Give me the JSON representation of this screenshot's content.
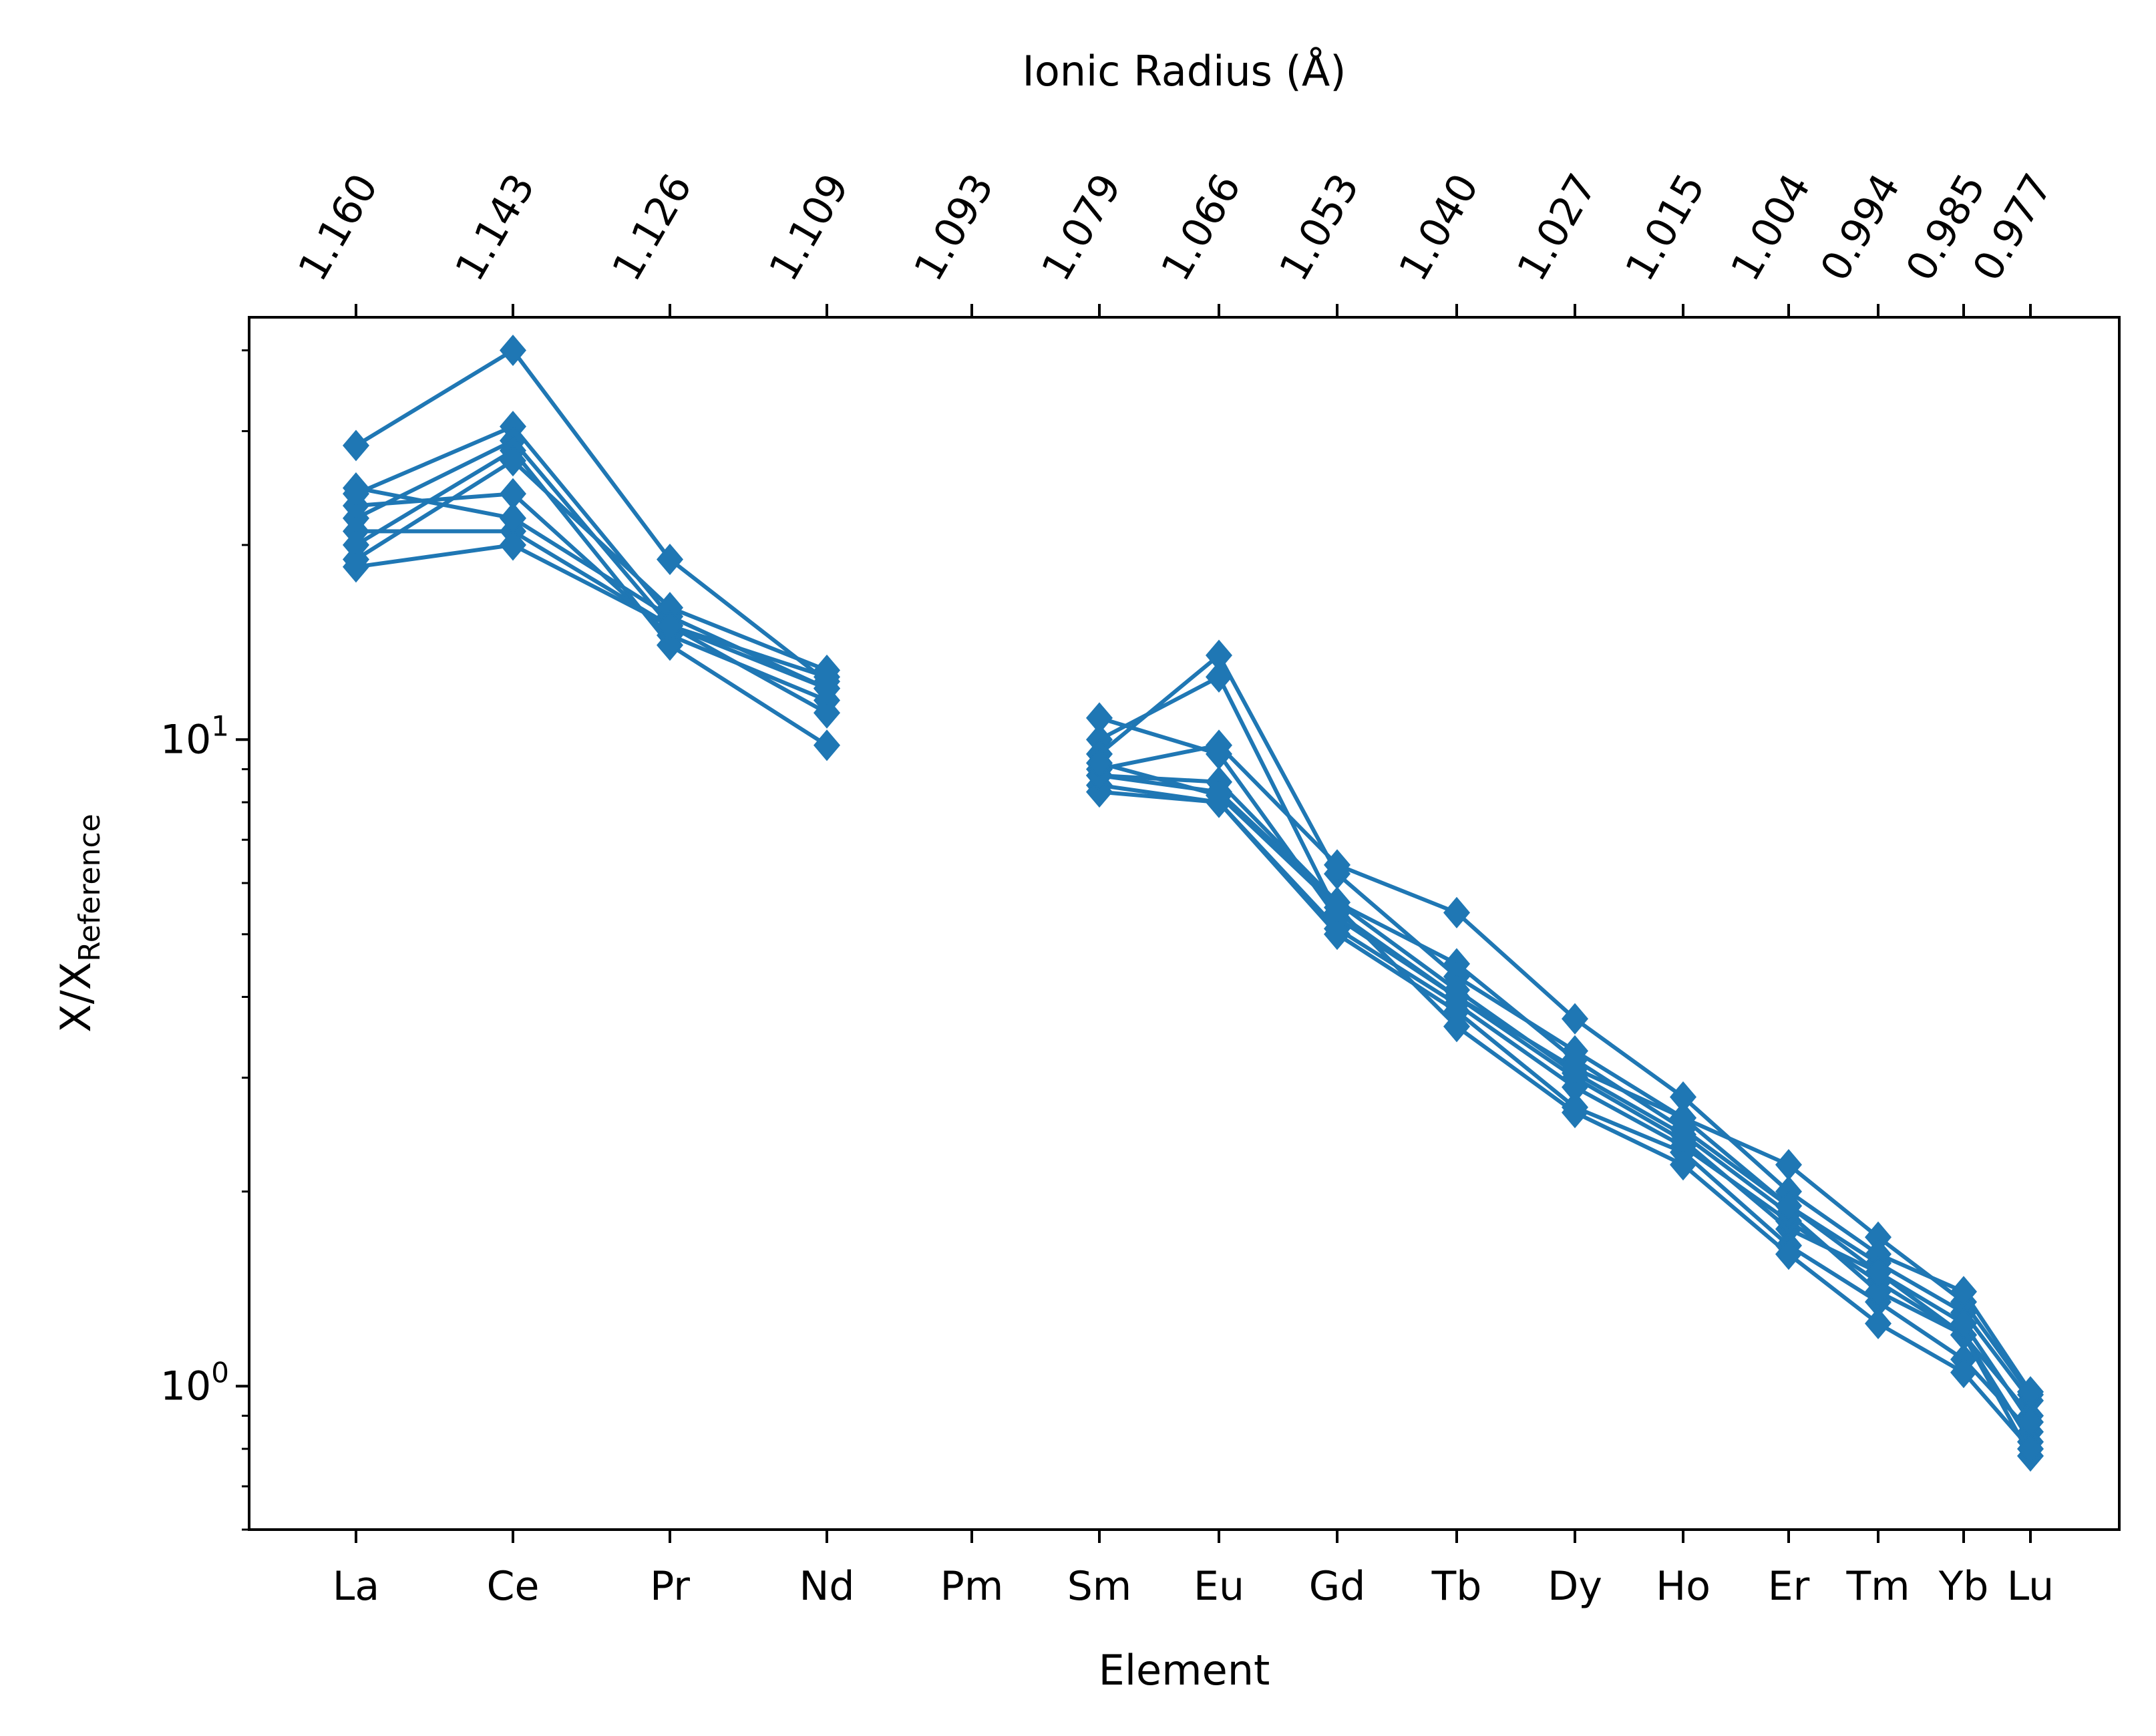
{
  "chart_data": {
    "type": "line",
    "title": "",
    "xlabel": "Element",
    "top_xlabel": "Ionic Radius (Å)",
    "ylabel_main": "X/X",
    "ylabel_sub": "Reference",
    "yscale": "log",
    "ylim": [
      0.6,
      45
    ],
    "ytick_labels": [
      {
        "base": "10",
        "exp": "0",
        "value": 1
      },
      {
        "base": "10",
        "exp": "1",
        "value": 10
      }
    ],
    "series_color": "#1f77b4",
    "marker": "diamond",
    "elements": [
      "La",
      "Ce",
      "Pr",
      "Nd",
      "Pm",
      "Sm",
      "Eu",
      "Gd",
      "Tb",
      "Dy",
      "Ho",
      "Er",
      "Tm",
      "Yb",
      "Lu"
    ],
    "ionic_radii": [
      "1.160",
      "1.143",
      "1.126",
      "1.109",
      "1.093",
      "1.079",
      "1.066",
      "1.053",
      "1.040",
      "1.027",
      "1.015",
      "1.004",
      "0.994",
      "0.985",
      "0.977"
    ],
    "grid": false,
    "series": [
      {
        "values": [
          28.5,
          40.0,
          19.0,
          12.3,
          null,
          8.8,
          8.3,
          5.6,
          4.5,
          3.2,
          2.5,
          1.9,
          1.55,
          1.3,
          0.95
        ]
      },
      {
        "values": [
          24.0,
          30.5,
          15.5,
          12.0,
          null,
          10.0,
          12.5,
          5.4,
          4.0,
          3.0,
          2.4,
          1.75,
          1.5,
          1.2,
          0.9
        ]
      },
      {
        "values": [
          23.0,
          24.0,
          14.5,
          11.5,
          null,
          8.5,
          8.0,
          5.0,
          3.8,
          2.7,
          2.3,
          1.65,
          1.35,
          1.1,
          0.85
        ]
      },
      {
        "values": [
          22.0,
          29.0,
          15.0,
          12.5,
          null,
          9.5,
          13.5,
          6.2,
          4.3,
          3.3,
          2.6,
          2.2,
          1.7,
          1.35,
          0.97
        ]
      },
      {
        "values": [
          21.0,
          21.0,
          15.0,
          11.0,
          null,
          8.3,
          8.0,
          5.1,
          3.9,
          2.9,
          2.35,
          1.8,
          1.45,
          1.2,
          0.82
        ]
      },
      {
        "values": [
          20.0,
          28.0,
          14.0,
          9.8,
          null,
          9.0,
          9.8,
          6.4,
          5.4,
          3.7,
          2.8,
          2.0,
          1.6,
          1.4,
          0.98
        ]
      },
      {
        "values": [
          24.5,
          22.0,
          15.5,
          12.0,
          null,
          8.8,
          8.6,
          5.6,
          4.1,
          3.05,
          2.45,
          1.85,
          1.4,
          1.2,
          0.78
        ]
      },
      {
        "values": [
          19.0,
          27.0,
          16.0,
          12.8,
          null,
          10.8,
          9.5,
          5.3,
          4.0,
          3.1,
          2.6,
          1.9,
          1.5,
          1.25,
          0.88
        ]
      },
      {
        "values": [
          18.5,
          20.0,
          15.0,
          12.0,
          null,
          9.2,
          8.2,
          5.5,
          3.6,
          2.65,
          2.2,
          1.6,
          1.25,
          1.05,
          0.8
        ]
      }
    ]
  }
}
